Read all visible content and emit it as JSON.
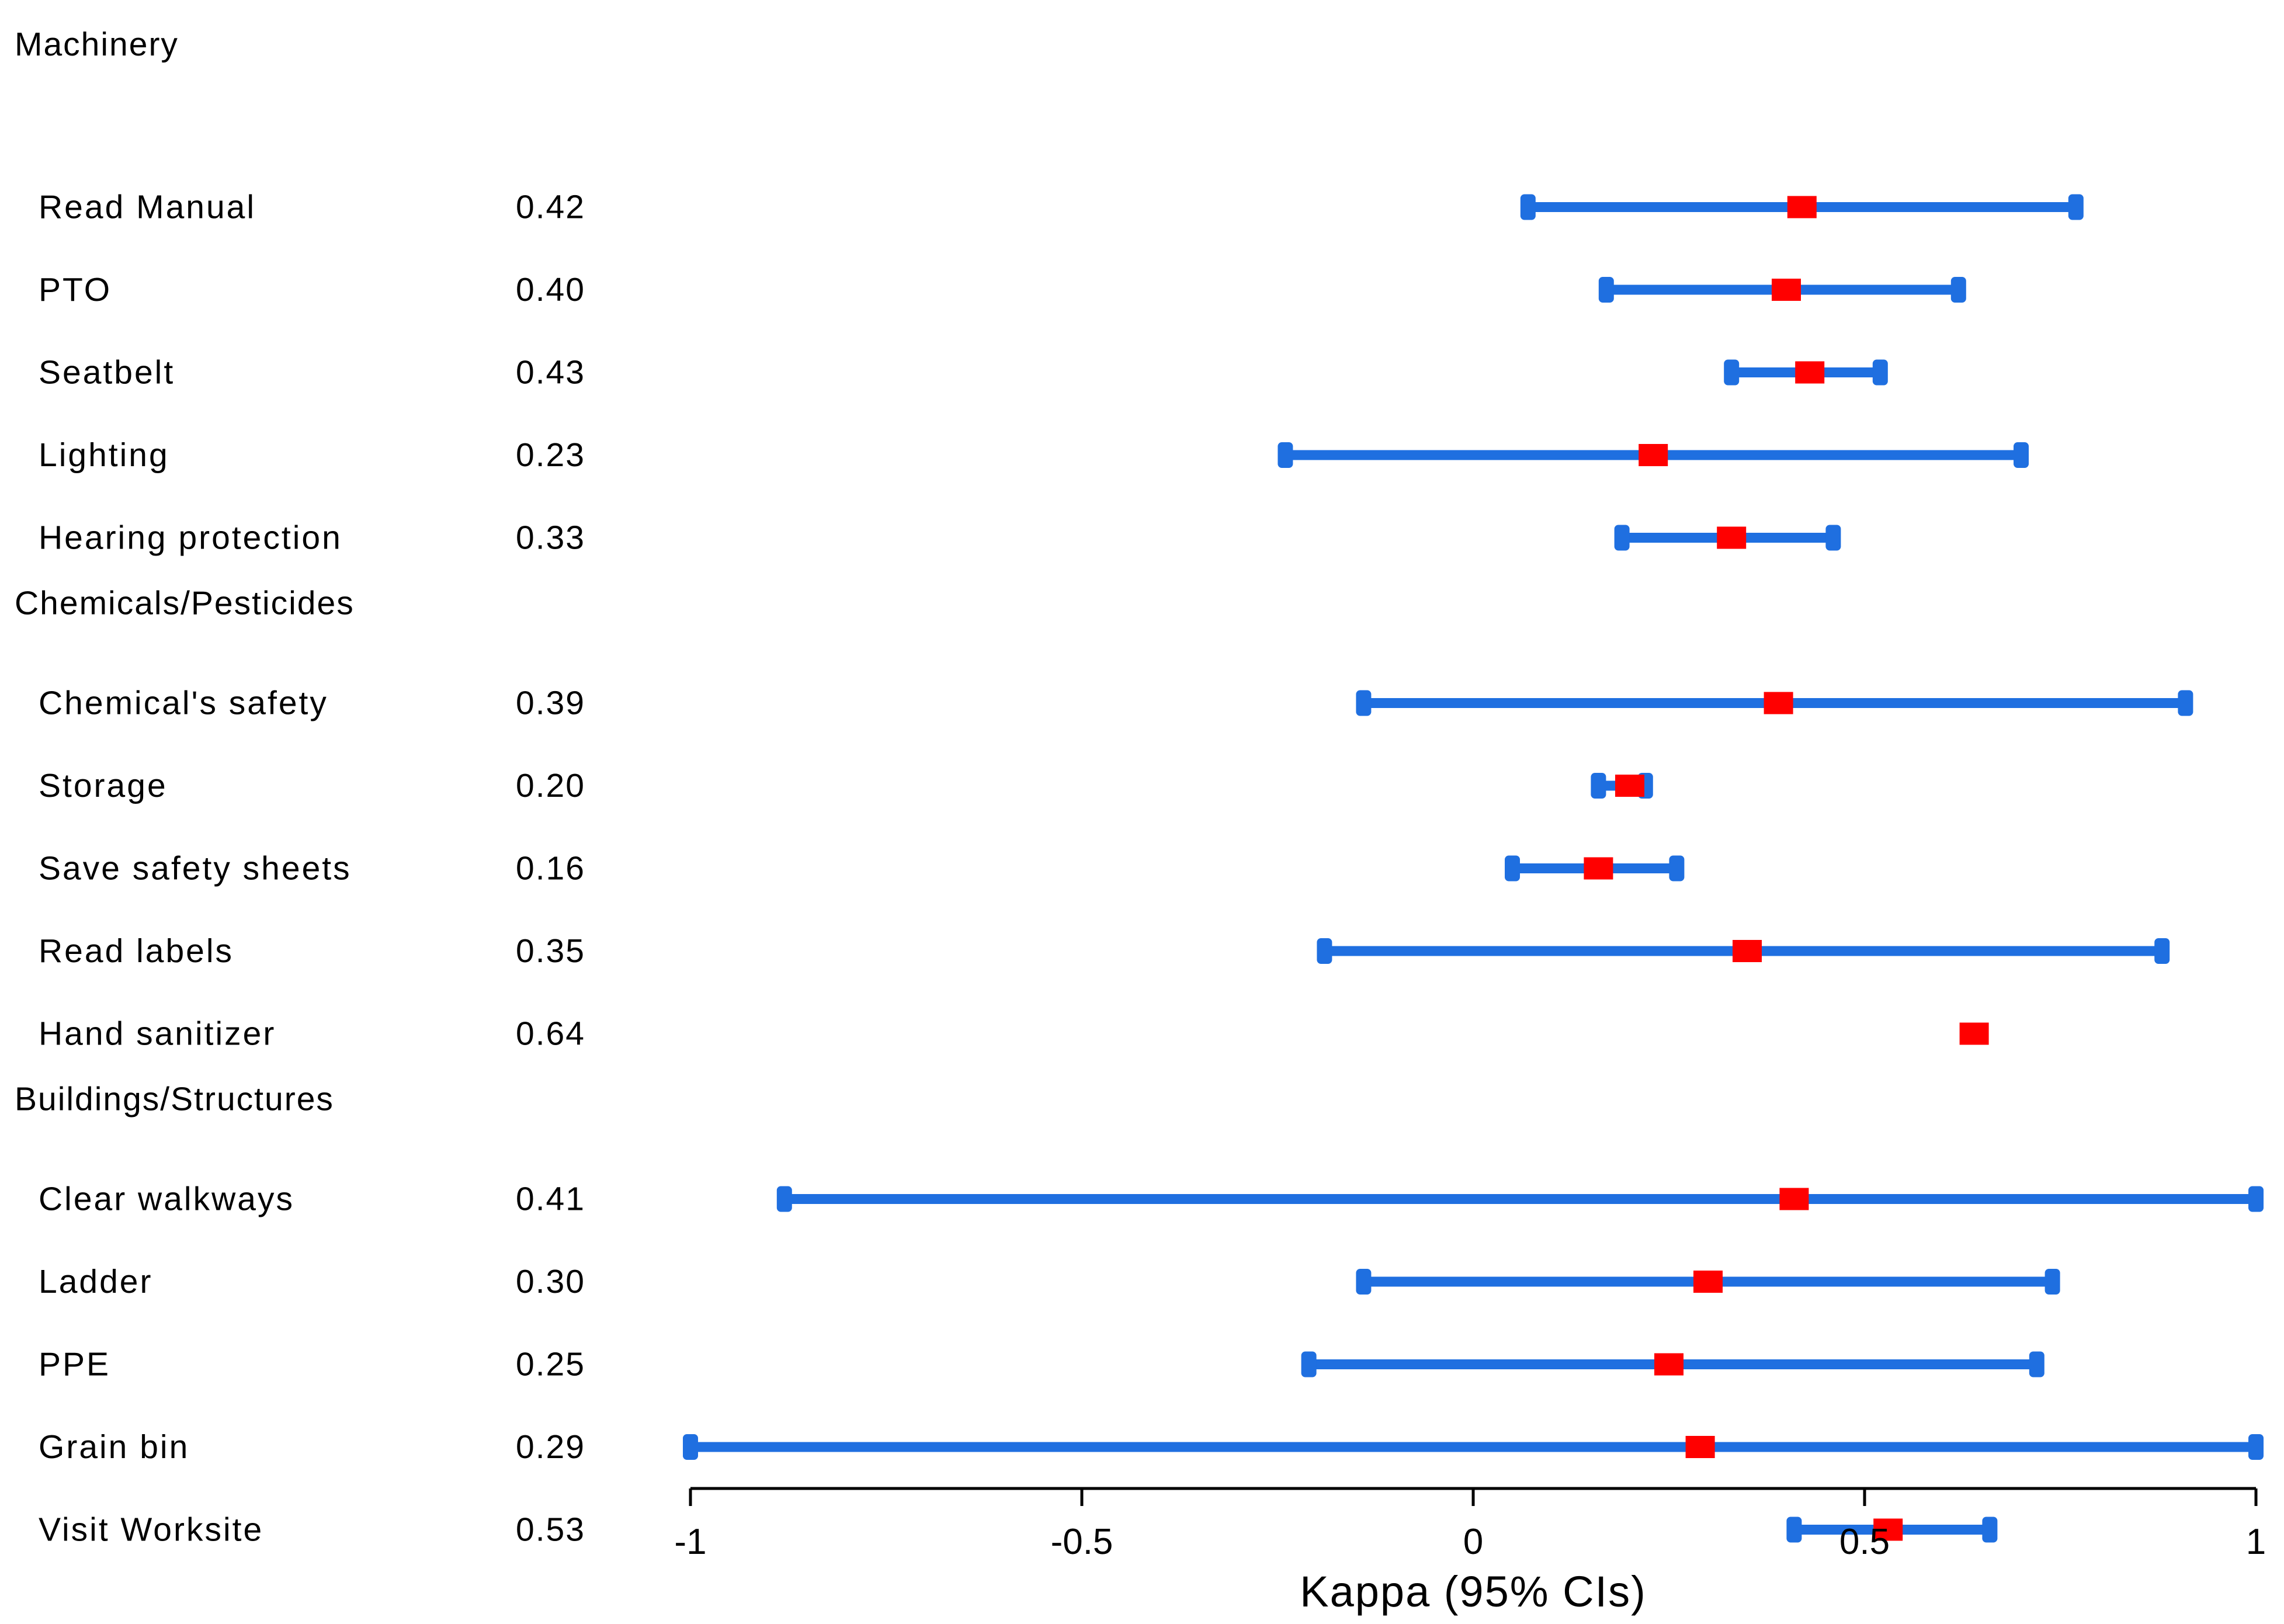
{
  "chart_data": {
    "type": "forest",
    "xlabel": "Kappa (95% CIs)",
    "xlim": [
      -1,
      1
    ],
    "xticks": [
      {
        "value": -1,
        "label": "-1"
      },
      {
        "value": -0.5,
        "label": "-0.5"
      },
      {
        "value": 0,
        "label": "0"
      },
      {
        "value": 0.5,
        "label": "0.5"
      },
      {
        "value": 1,
        "label": "1"
      }
    ],
    "colors": {
      "ci": "#1f6fe0",
      "point": "#ff0000",
      "axis": "#000000"
    },
    "rows": [
      {
        "kind": "group",
        "label": "Machinery"
      },
      {
        "kind": "item",
        "label": "Read Manual",
        "kappa_label": "0.42",
        "kappa": 0.42,
        "lower": 0.07,
        "upper": 0.77
      },
      {
        "kind": "item",
        "label": "PTO",
        "kappa_label": "0.40",
        "kappa": 0.4,
        "lower": 0.17,
        "upper": 0.62
      },
      {
        "kind": "item",
        "label": "Seatbelt",
        "kappa_label": "0.43",
        "kappa": 0.43,
        "lower": 0.33,
        "upper": 0.52
      },
      {
        "kind": "item",
        "label": "Lighting",
        "kappa_label": "0.23",
        "kappa": 0.23,
        "lower": -0.24,
        "upper": 0.7
      },
      {
        "kind": "item",
        "label": "Hearing protection",
        "kappa_label": "0.33",
        "kappa": 0.33,
        "lower": 0.19,
        "upper": 0.46
      },
      {
        "kind": "group",
        "label": "Chemicals/Pesticides"
      },
      {
        "kind": "item",
        "label": "Chemical's safety",
        "kappa_label": "0.39",
        "kappa": 0.39,
        "lower": -0.14,
        "upper": 0.91
      },
      {
        "kind": "item",
        "label": "Storage",
        "kappa_label": "0.20",
        "kappa": 0.2,
        "lower": 0.16,
        "upper": 0.22
      },
      {
        "kind": "item",
        "label": "Save safety sheets",
        "kappa_label": "0.16",
        "kappa": 0.16,
        "lower": 0.05,
        "upper": 0.26
      },
      {
        "kind": "item",
        "label": "Read labels",
        "kappa_label": "0.35",
        "kappa": 0.35,
        "lower": -0.19,
        "upper": 0.88
      },
      {
        "kind": "item",
        "label": "Hand sanitizer",
        "kappa_label": "0.64",
        "kappa": 0.64,
        "lower": null,
        "upper": null
      },
      {
        "kind": "group",
        "label": "Buildings/Structures"
      },
      {
        "kind": "item",
        "label": "Clear walkways",
        "kappa_label": "0.41",
        "kappa": 0.41,
        "lower": -0.88,
        "upper": 1.0
      },
      {
        "kind": "item",
        "label": "Ladder",
        "kappa_label": "0.30",
        "kappa": 0.3,
        "lower": -0.14,
        "upper": 0.74
      },
      {
        "kind": "item",
        "label": "PPE",
        "kappa_label": "0.25",
        "kappa": 0.25,
        "lower": -0.21,
        "upper": 0.72
      },
      {
        "kind": "item",
        "label": "Grain bin",
        "kappa_label": "0.29",
        "kappa": 0.29,
        "lower": -1.0,
        "upper": 1.0
      },
      {
        "kind": "item",
        "label": "Visit Worksite",
        "kappa_label": "0.53",
        "kappa": 0.53,
        "lower": 0.41,
        "upper": 0.66
      }
    ]
  }
}
